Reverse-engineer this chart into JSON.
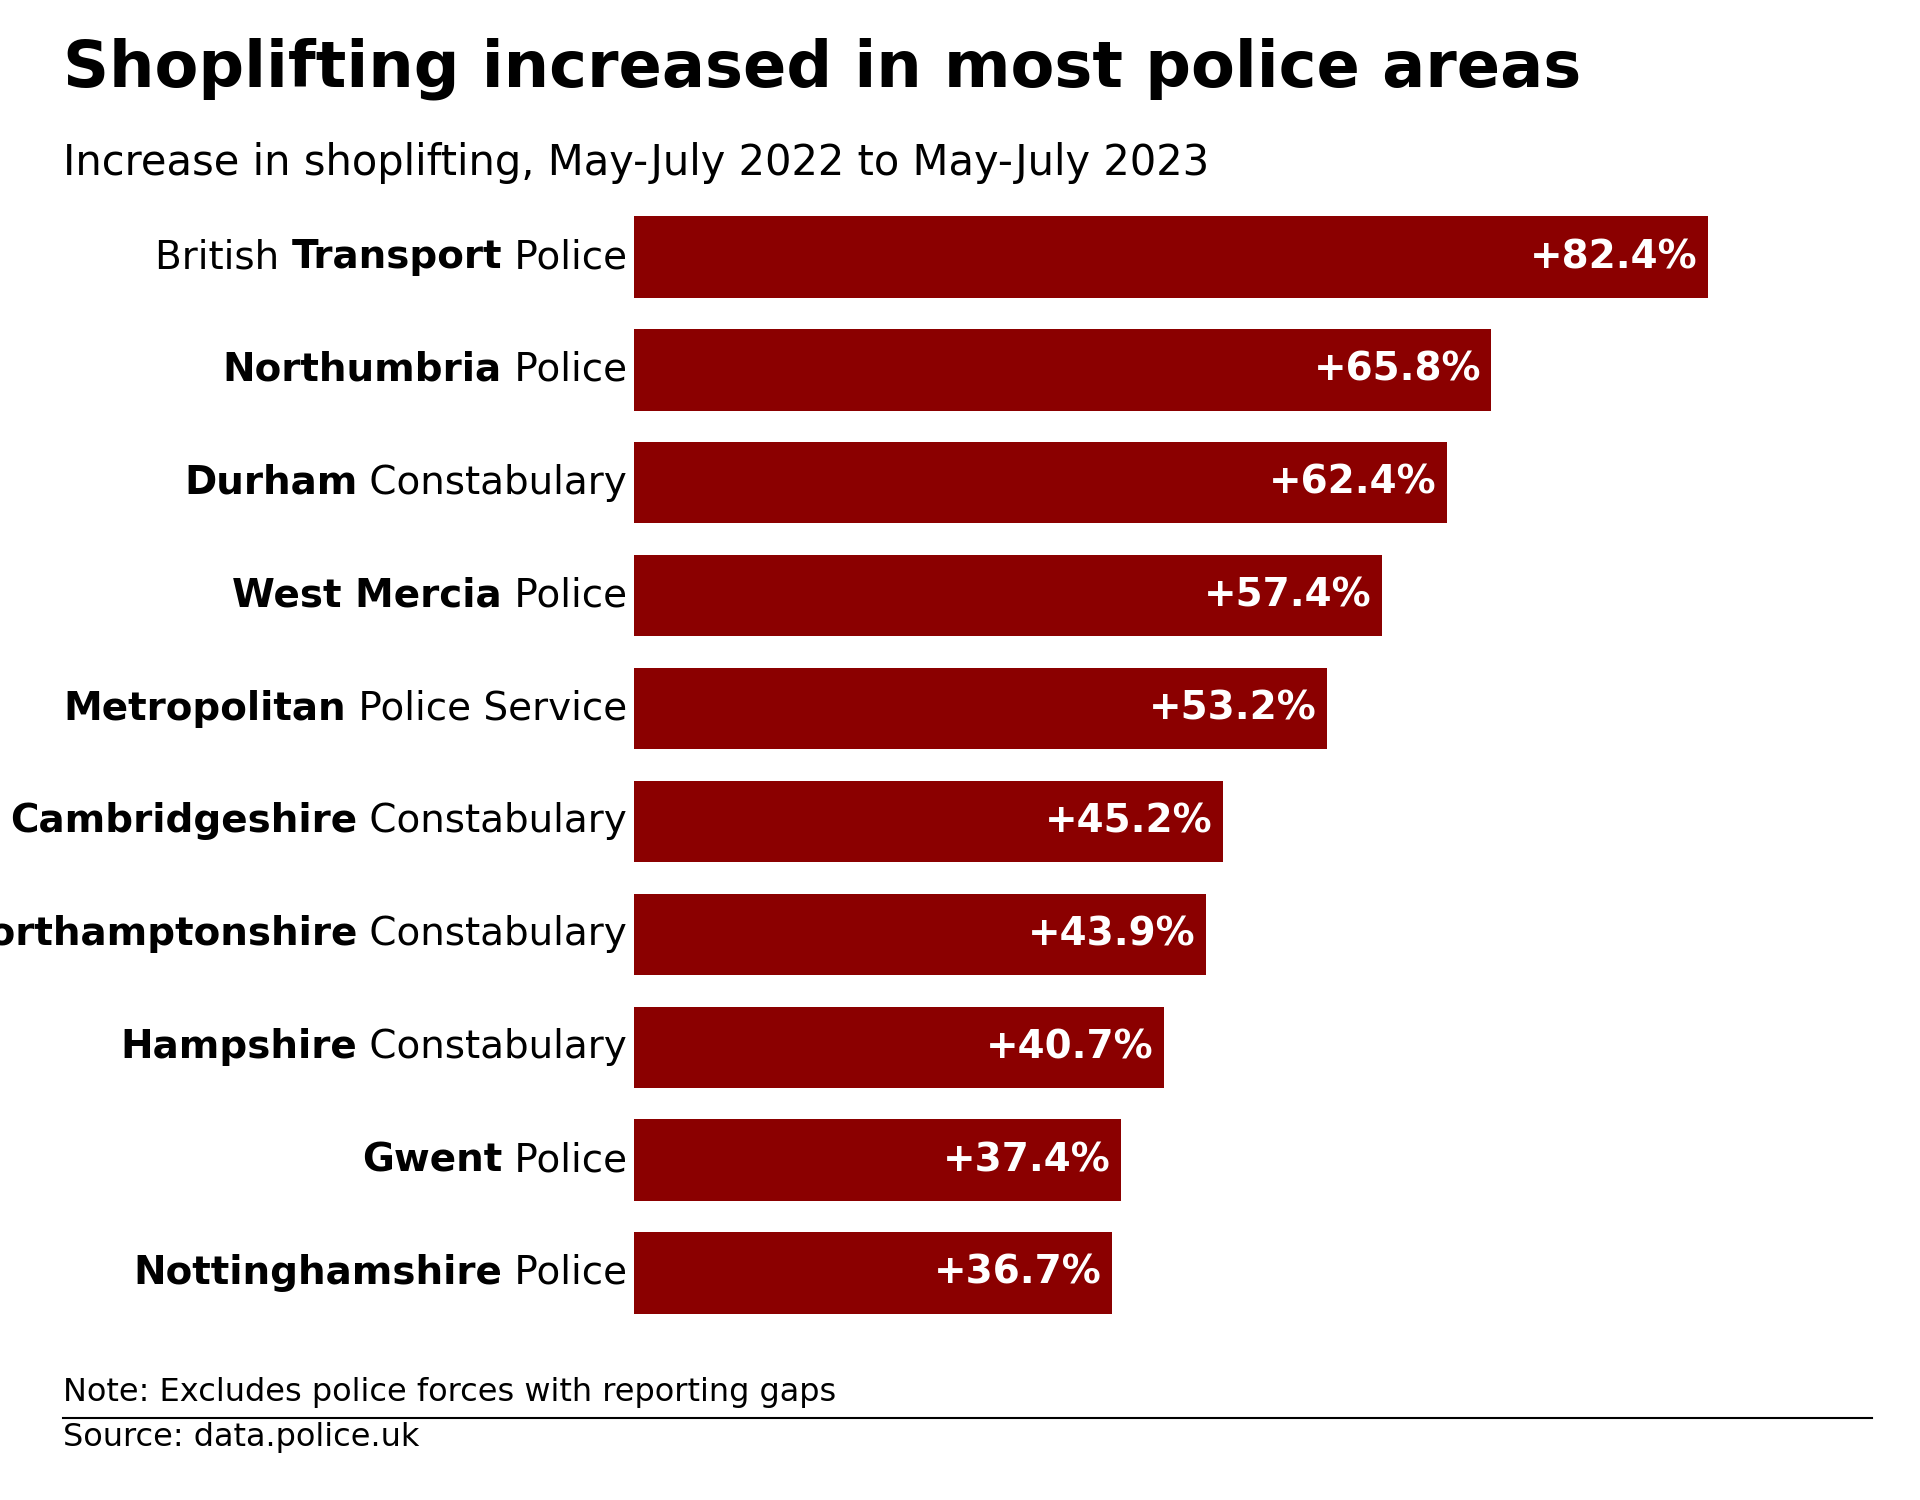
{
  "title": "Shoplifting increased in most police areas",
  "subtitle": "Increase in shoplifting, May-July 2022 to May-July 2023",
  "note": "Note: Excludes police forces with reporting gaps",
  "source": "Source: data.police.uk",
  "bar_color": "#8B0000",
  "background_color": "#FFFFFF",
  "categories": [
    "British Transport Police",
    "Northumbria Police",
    "Durham Constabulary",
    "West Mercia Police",
    "Metropolitan Police Service",
    "Cambridgeshire Constabulary",
    "Northamptonshire Constabulary",
    "Hampshire Constabulary",
    "Gwent Police",
    "Nottinghamshire Police"
  ],
  "label_parts": [
    [
      [
        "British ",
        false
      ],
      [
        "Transport",
        true
      ],
      [
        " Police",
        false
      ]
    ],
    [
      [
        "Northumbria",
        true
      ],
      [
        " Police",
        false
      ]
    ],
    [
      [
        "Durham",
        true
      ],
      [
        " Constabulary",
        false
      ]
    ],
    [
      [
        "West Mercia",
        true
      ],
      [
        " Police",
        false
      ]
    ],
    [
      [
        "Metropolitan",
        true
      ],
      [
        " Police Service",
        false
      ]
    ],
    [
      [
        "Cambridgeshire",
        true
      ],
      [
        " Constabulary",
        false
      ]
    ],
    [
      [
        "Northamptonshire",
        true
      ],
      [
        " Constabulary",
        false
      ]
    ],
    [
      [
        "Hampshire",
        true
      ],
      [
        " Constabulary",
        false
      ]
    ],
    [
      [
        "Gwent",
        true
      ],
      [
        " Police",
        false
      ]
    ],
    [
      [
        "Nottinghamshire",
        true
      ],
      [
        " Police",
        false
      ]
    ]
  ],
  "values": [
    82.4,
    65.8,
    62.4,
    57.4,
    53.2,
    45.2,
    43.9,
    40.7,
    37.4,
    36.7
  ],
  "labels": [
    "+82.4%",
    "+65.8%",
    "+62.4%",
    "+57.4%",
    "+53.2%",
    "+45.2%",
    "+43.9%",
    "+40.7%",
    "+37.4%",
    "+36.7%"
  ],
  "xlim": [
    0,
    95
  ],
  "title_fontsize": 46,
  "subtitle_fontsize": 30,
  "label_fontsize": 28,
  "bar_label_fontsize": 28,
  "note_fontsize": 23,
  "source_fontsize": 23
}
